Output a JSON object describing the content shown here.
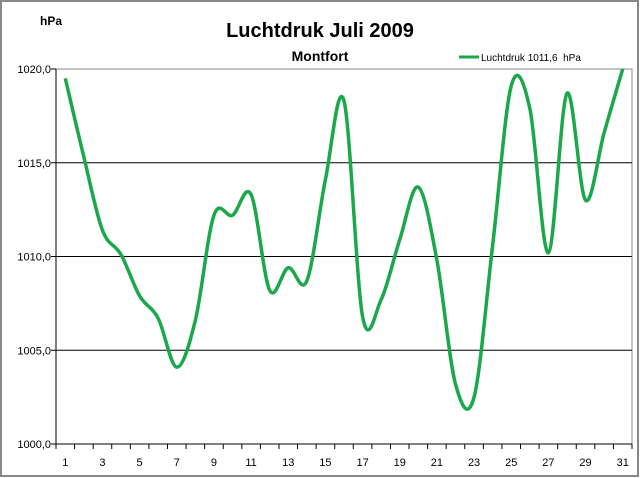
{
  "chart_data": {
    "type": "line",
    "title": "Luchtdruk Juli 2009",
    "subtitle": "Montfort",
    "ylabel": "hPa",
    "xlabel": "",
    "ylim": [
      1000,
      1020
    ],
    "yticks": [
      "1000,0",
      "1005,0",
      "1010,0",
      "1015,0",
      "1020,0"
    ],
    "ytick_values": [
      1000,
      1005,
      1010,
      1015,
      1020
    ],
    "grid": true,
    "legend_position": "top-right",
    "x": [
      1,
      2,
      3,
      4,
      5,
      6,
      7,
      8,
      9,
      10,
      11,
      12,
      13,
      14,
      15,
      16,
      17,
      18,
      19,
      20,
      21,
      22,
      23,
      24,
      25,
      26,
      27,
      28,
      29,
      30,
      31
    ],
    "xtick_labels": [
      "1",
      "3",
      "5",
      "7",
      "9",
      "11",
      "13",
      "15",
      "17",
      "19",
      "21",
      "23",
      "25",
      "27",
      "29",
      "31"
    ],
    "series": [
      {
        "name": "Luchtdruk 1011,6  hPa",
        "color": "#1aa84a",
        "values": [
          1019.5,
          1015.3,
          1011.4,
          1010.1,
          1007.9,
          1006.7,
          1004.1,
          1006.6,
          1012.2,
          1012.2,
          1013.3,
          1008.2,
          1009.4,
          1008.7,
          1014.1,
          1018.3,
          1006.8,
          1007.7,
          1010.9,
          1013.7,
          1009.8,
          1003.2,
          1002.5,
          1010.6,
          1019.1,
          1017.9,
          1010.2,
          1018.7,
          1013.0,
          1016.6,
          1020.0
        ]
      }
    ]
  }
}
